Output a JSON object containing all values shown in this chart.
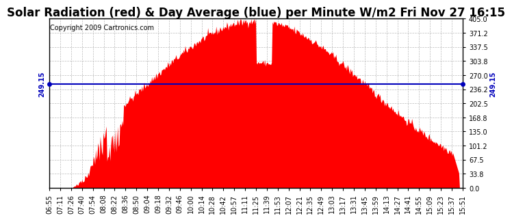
{
  "title": "Solar Radiation (red) & Day Average (blue) per Minute W/m2 Fri Nov 27 16:15",
  "copyright": "Copyright 2009 Cartronics.com",
  "y_min": 0.0,
  "y_max": 405.0,
  "y_ticks": [
    0.0,
    33.8,
    67.5,
    101.2,
    135.0,
    168.8,
    202.5,
    236.2,
    270.0,
    303.8,
    337.5,
    371.2,
    405.0
  ],
  "day_average": 249.15,
  "fill_color": "#FF0000",
  "line_color": "#0000BB",
  "background_color": "#FFFFFF",
  "grid_color": "#BBBBBB",
  "x_labels": [
    "06:55",
    "07:11",
    "07:26",
    "07:40",
    "07:54",
    "08:08",
    "08:22",
    "08:36",
    "08:50",
    "09:04",
    "09:18",
    "09:32",
    "09:46",
    "10:00",
    "10:14",
    "10:28",
    "10:42",
    "10:57",
    "11:11",
    "11:25",
    "11:39",
    "11:53",
    "12:07",
    "12:21",
    "12:35",
    "12:49",
    "13:03",
    "13:17",
    "13:31",
    "13:45",
    "13:59",
    "14:13",
    "14:27",
    "14:41",
    "14:55",
    "15:09",
    "15:23",
    "15:37",
    "15:51"
  ],
  "title_fontsize": 12,
  "tick_fontsize": 7,
  "copyright_fontsize": 7,
  "avg_label_fontsize": 7
}
